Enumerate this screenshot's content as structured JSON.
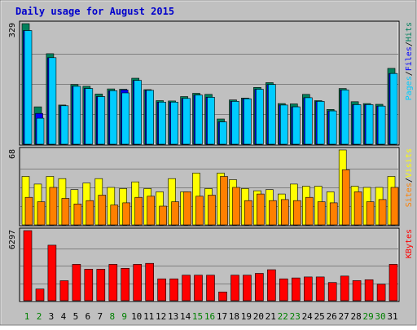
{
  "title": "Daily usage for August 2015",
  "colors": {
    "background": "#c0c0c0",
    "border_dark": "#808080",
    "border_light": "#e8e8e8",
    "title": "#0000cc",
    "hits": "#00805c",
    "files": "#0000ff",
    "pages": "#00ccff",
    "visits": "#ffff00",
    "sites": "#ff8000",
    "kbytes": "#ff0000",
    "weekend_label": "#008000",
    "weekday_label": "#000000",
    "grid": "#808080"
  },
  "chart_data": [
    {
      "type": "bar",
      "panel": "hits-files-pages",
      "ylim": [
        0,
        329
      ],
      "y_max_label": "329",
      "legend": [
        {
          "name": "Pages",
          "color_key": "pages"
        },
        {
          "name": "Files",
          "color_key": "files"
        },
        {
          "name": "Hits",
          "color_key": "hits"
        }
      ],
      "legend_separators": [
        "/",
        "/"
      ],
      "x": [
        1,
        2,
        3,
        4,
        5,
        6,
        7,
        8,
        9,
        10,
        11,
        12,
        13,
        14,
        15,
        16,
        17,
        18,
        19,
        20,
        21,
        22,
        23,
        24,
        25,
        26,
        27,
        28,
        29,
        30,
        31
      ],
      "series": [
        {
          "name": "Hits",
          "values": [
            329,
            102,
            247,
            107,
            163,
            158,
            137,
            151,
            150,
            180,
            149,
            119,
            118,
            130,
            139,
            136,
            69,
            121,
            126,
            155,
            168,
            111,
            110,
            136,
            119,
            95,
            152,
            116,
            111,
            109,
            207
          ]
        },
        {
          "name": "Files",
          "values": [
            310,
            84,
            236,
            105,
            158,
            152,
            130,
            146,
            148,
            174,
            147,
            115,
            115,
            125,
            134,
            128,
            61,
            117,
            124,
            150,
            163,
            107,
            102,
            127,
            117,
            91,
            148,
            108,
            108,
            104,
            193
          ]
        },
        {
          "name": "Pages",
          "values": [
            310,
            71,
            236,
            105,
            158,
            152,
            130,
            146,
            140,
            174,
            147,
            115,
            115,
            125,
            134,
            128,
            61,
            117,
            124,
            150,
            163,
            107,
            102,
            127,
            117,
            91,
            148,
            108,
            108,
            104,
            193
          ]
        }
      ]
    },
    {
      "type": "bar",
      "panel": "visits-sites",
      "ylim": [
        0,
        68
      ],
      "y_max_label": "68",
      "legend": [
        {
          "name": "Sites",
          "color_key": "sites"
        },
        {
          "name": "Visits",
          "color_key": "visits"
        }
      ],
      "legend_separators": [
        "/"
      ],
      "x": [
        1,
        2,
        3,
        4,
        5,
        6,
        7,
        8,
        9,
        10,
        11,
        12,
        13,
        14,
        15,
        16,
        17,
        18,
        19,
        20,
        21,
        22,
        23,
        24,
        25,
        26,
        27,
        28,
        29,
        30,
        31
      ],
      "series": [
        {
          "name": "Visits",
          "values": [
            44,
            37,
            44,
            42,
            32,
            38,
            42,
            34,
            33,
            39,
            33,
            30,
            42,
            30,
            47,
            33,
            47,
            41,
            33,
            31,
            32,
            28,
            37,
            35,
            35,
            30,
            68,
            35,
            34,
            34,
            44
          ]
        },
        {
          "name": "Sites",
          "values": [
            25,
            21,
            34,
            24,
            19,
            22,
            27,
            18,
            20,
            25,
            26,
            17,
            21,
            30,
            26,
            27,
            44,
            34,
            22,
            28,
            22,
            23,
            22,
            25,
            21,
            20,
            50,
            30,
            21,
            23,
            34
          ]
        }
      ]
    },
    {
      "type": "bar",
      "panel": "kbytes",
      "ylim": [
        0,
        6297
      ],
      "y_max_label": "6297",
      "legend": [
        {
          "name": "KBytes",
          "color_key": "kbytes"
        }
      ],
      "legend_separators": [],
      "x": [
        1,
        2,
        3,
        4,
        5,
        6,
        7,
        8,
        9,
        10,
        11,
        12,
        13,
        14,
        15,
        16,
        17,
        18,
        19,
        20,
        21,
        22,
        23,
        24,
        25,
        26,
        27,
        28,
        29,
        30,
        31
      ],
      "series": [
        {
          "name": "KBytes",
          "values": [
            6297,
            1050,
            4988,
            1797,
            3269,
            2829,
            2829,
            3269,
            2910,
            3269,
            3351,
            1960,
            1960,
            2290,
            2290,
            2290,
            780,
            2290,
            2290,
            2450,
            2780,
            1960,
            2040,
            2130,
            2130,
            1630,
            2210,
            1800,
            1880,
            1480,
            3269
          ]
        }
      ]
    }
  ],
  "x_labels": [
    "1",
    "2",
    "3",
    "4",
    "5",
    "6",
    "7",
    "8",
    "9",
    "10",
    "11",
    "12",
    "13",
    "14",
    "15",
    "16",
    "17",
    "18",
    "19",
    "20",
    "21",
    "22",
    "23",
    "24",
    "25",
    "26",
    "27",
    "28",
    "29",
    "30",
    "31"
  ],
  "weekend_days": [
    1,
    2,
    8,
    9,
    15,
    16,
    22,
    23,
    29,
    30
  ]
}
